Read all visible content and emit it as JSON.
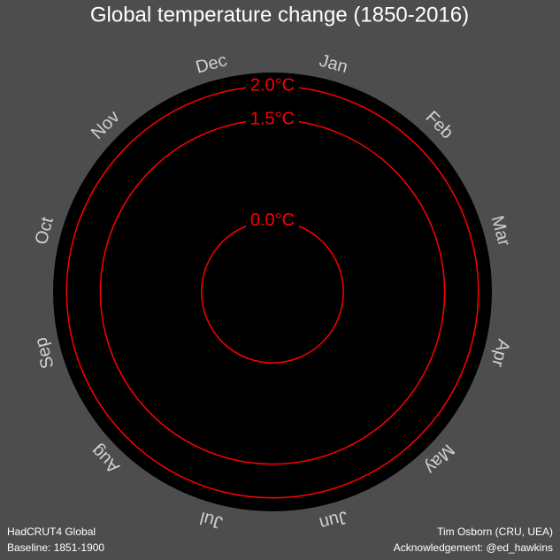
{
  "chart_data": {
    "type": "polar",
    "title": "Global temperature change (1850-2016)",
    "categories": [
      "Jan",
      "Feb",
      "Mar",
      "Apr",
      "May",
      "Jun",
      "Jul",
      "Aug",
      "Sep",
      "Oct",
      "Nov",
      "Dec"
    ],
    "rlim": [
      -1.05,
      2.2
    ],
    "rticks": [
      {
        "value": 0,
        "label": "0.0°C"
      },
      {
        "value": 1.5,
        "label": "1.5°C"
      },
      {
        "value": 2,
        "label": "2.0°C"
      }
    ],
    "ring_color": "#ff0000"
  },
  "footer": {
    "left": [
      "HadCRUT4 Global",
      "Baseline: 1851-1900"
    ],
    "right": [
      "Tim Osborn (CRU, UEA)",
      "Acknowledgement: @ed_hawkins"
    ]
  }
}
